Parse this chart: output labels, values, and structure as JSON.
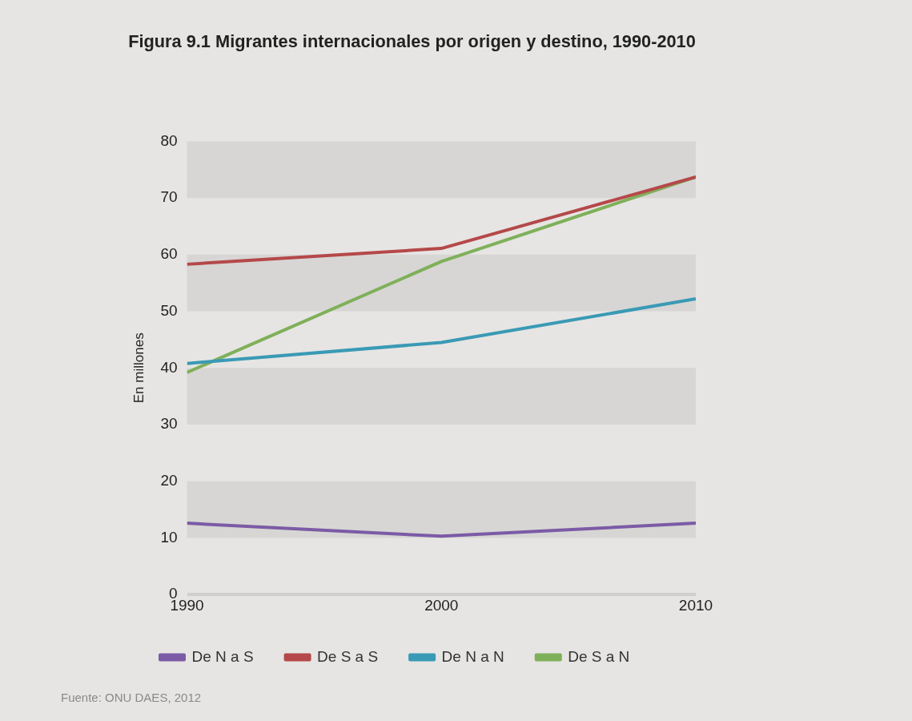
{
  "chart_data": {
    "type": "line",
    "title": "Figura 9.1 Migrantes internacionales por origen y destino, 1990-2010",
    "ylabel": "En millones",
    "x": [
      1990,
      2000,
      2010
    ],
    "xlim": [
      1990,
      2010
    ],
    "xticks": [
      1990,
      2000,
      2010
    ],
    "ylim": [
      0,
      80
    ],
    "yticks": [
      0,
      10,
      20,
      30,
      40,
      50,
      60,
      70,
      80
    ],
    "series": [
      {
        "name": "De N a S",
        "color": "#7c5ba6",
        "values": [
          12.6,
          10.3,
          12.6
        ]
      },
      {
        "name": "De S a S",
        "color": "#b5484a",
        "values": [
          58.3,
          61.1,
          73.7
        ]
      },
      {
        "name": "De N a N",
        "color": "#3a9ab5",
        "values": [
          40.8,
          44.5,
          52.2
        ]
      },
      {
        "name": "De S a N",
        "color": "#7fb05a",
        "values": [
          39.2,
          58.8,
          73.7
        ]
      }
    ],
    "bands": [
      {
        "axis": "y",
        "from": 70,
        "to": 80,
        "color": "#d7d6d4"
      },
      {
        "axis": "y",
        "from": 50,
        "to": 60,
        "color": "#d7d6d4"
      },
      {
        "axis": "y",
        "from": 30,
        "to": 40,
        "color": "#d7d6d4"
      },
      {
        "axis": "y",
        "from": 10,
        "to": 20,
        "color": "#d7d6d4"
      }
    ],
    "grid": false,
    "legend": "bottom",
    "marker": "none",
    "line_style": "solid",
    "annotations": [
      "Fuente: ONU DAES, 2012"
    ]
  }
}
